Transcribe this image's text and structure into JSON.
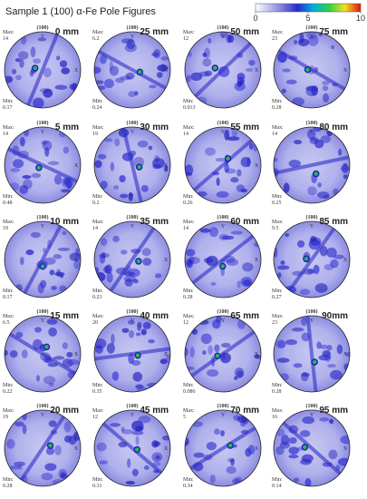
{
  "title": "Sample 1 (100) α-Fe Pole Figures",
  "colorbar": {
    "range": [
      0,
      10
    ],
    "ticks": [
      0,
      5,
      10
    ]
  },
  "labels": {
    "max": "Max:",
    "min": "Min:",
    "pole": "(100)",
    "y_axis": "Y",
    "x_axis": "X"
  },
  "panels": [
    {
      "label": "0 mm",
      "max": "14",
      "min": "0.17"
    },
    {
      "label": "25 mm",
      "max": "6.2",
      "min": "0.24"
    },
    {
      "label": "50 mm",
      "max": "12",
      "min": "0.013"
    },
    {
      "label": "75 mm",
      "max": "23",
      "min": "0.28"
    },
    {
      "label": "5 mm",
      "max": "14",
      "min": "0.48"
    },
    {
      "label": "30 mm",
      "max": "19",
      "min": "0.2"
    },
    {
      "label": "55 mm",
      "max": "14",
      "min": "0.26"
    },
    {
      "label": "80 mm",
      "max": "14",
      "min": "0.25"
    },
    {
      "label": "10 mm",
      "max": "19",
      "min": "0.17"
    },
    {
      "label": "35 mm",
      "max": "14",
      "min": "0.23"
    },
    {
      "label": "60 mm",
      "max": "14",
      "min": "0.28"
    },
    {
      "label": "85 mm",
      "max": "9.5",
      "min": "0.27"
    },
    {
      "label": "15 mm",
      "max": "6.5",
      "min": "0.22"
    },
    {
      "label": "40 mm",
      "max": "20",
      "min": "0.35"
    },
    {
      "label": "65 mm",
      "max": "12",
      "min": "0.086"
    },
    {
      "label": "90mm",
      "max": "23",
      "min": "0.28"
    },
    {
      "label": "20 mm",
      "max": "19",
      "min": "0.28"
    },
    {
      "label": "45 mm",
      "max": "12",
      "min": "0.31"
    },
    {
      "label": "70 mm",
      "max": "5",
      "min": "0.34"
    },
    {
      "label": "95 mm",
      "max": "16",
      "min": "0.14"
    }
  ]
}
